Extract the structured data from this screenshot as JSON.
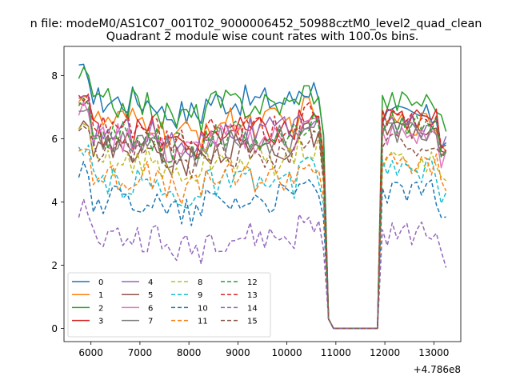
{
  "chart_data": {
    "type": "line",
    "suptitle": "n file: modeM0/AS1C07_001T02_9000006452_50988cztM0_level2_quad_clean",
    "title": "Quadrant 2 module wise count rates with 100.0s bins.",
    "xlabel": "",
    "ylabel": "",
    "x_offset_label": "+4.786e8",
    "xlim": [
      5450,
      13550
    ],
    "ylim": [
      -0.42,
      8.92
    ],
    "xticks": [
      6000,
      7000,
      8000,
      9000,
      10000,
      11000,
      12000,
      13000
    ],
    "xtick_labels": [
      "6000",
      "7000",
      "8000",
      "9000",
      "10000",
      "11000",
      "12000",
      "13000"
    ],
    "yticks": [
      0,
      2,
      4,
      6,
      8
    ],
    "ytick_labels": [
      "0",
      "2",
      "4",
      "6",
      "8"
    ],
    "grid": false,
    "legend_position": "lower-left",
    "legend_columns": 4,
    "x_start": 5750,
    "x_step": 100,
    "note_shape": "All series share x from 5750 to 13250 in steps of 100; values drop to 0 between ~10950 and ~11850.",
    "gap_value": 0,
    "series": [
      {
        "name": "0",
        "color": "#1f77b4",
        "dash": "solid",
        "level": 7.2,
        "after": 6.7
      },
      {
        "name": "1",
        "color": "#ff7f0e",
        "dash": "solid",
        "level": 6.5,
        "after": 6.5
      },
      {
        "name": "2",
        "color": "#2ca02c",
        "dash": "solid",
        "level": 7.1,
        "after": 7.2
      },
      {
        "name": "3",
        "color": "#d62728",
        "dash": "solid",
        "level": 6.2,
        "after": 6.6
      },
      {
        "name": "4",
        "color": "#9467bd",
        "dash": "solid",
        "level": 6.2,
        "after": 6.4
      },
      {
        "name": "5",
        "color": "#8c564b",
        "dash": "solid",
        "level": 5.7,
        "after": 6.2
      },
      {
        "name": "6",
        "color": "#e377c2",
        "dash": "solid",
        "level": 6.0,
        "after": 6.1
      },
      {
        "name": "7",
        "color": "#7f7f7f",
        "dash": "solid",
        "level": 6.0,
        "after": 6.2
      },
      {
        "name": "8",
        "color": "#bcbd22",
        "dash": "dashed",
        "level": 5.3,
        "after": 5.3
      },
      {
        "name": "9",
        "color": "#17becf",
        "dash": "dashed",
        "level": 4.6,
        "after": 5.0
      },
      {
        "name": "10",
        "color": "#1f77b4",
        "dash": "dashed",
        "level": 4.1,
        "after": 4.3
      },
      {
        "name": "11",
        "color": "#ff7f0e",
        "dash": "dashed",
        "level": 4.8,
        "after": 5.2
      },
      {
        "name": "12",
        "color": "#2ca02c",
        "dash": "dashed",
        "level": 6.1,
        "after": 6.5
      },
      {
        "name": "13",
        "color": "#d62728",
        "dash": "dashed",
        "level": 6.3,
        "after": 6.6
      },
      {
        "name": "14",
        "color": "#9467bd",
        "dash": "dashed",
        "level": 2.9,
        "after": 3.0
      },
      {
        "name": "15",
        "color": "#8c564b",
        "dash": "dashed",
        "level": 5.5,
        "after": 5.8
      }
    ]
  }
}
